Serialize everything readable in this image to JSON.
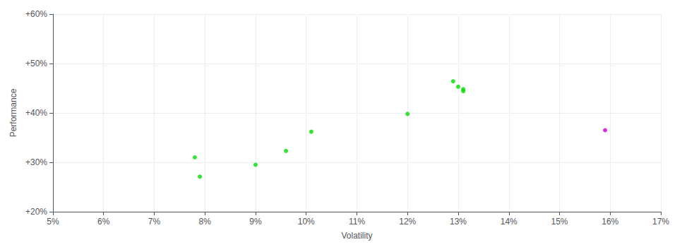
{
  "chart_data": {
    "type": "scatter",
    "xlabel": "Volatility",
    "ylabel": "Performance",
    "xlim": [
      0.05,
      0.17
    ],
    "ylim": [
      0.2,
      0.6
    ],
    "xticks": [
      {
        "value": 0.05,
        "label": "5%"
      },
      {
        "value": 0.06,
        "label": "6%"
      },
      {
        "value": 0.07,
        "label": "7%"
      },
      {
        "value": 0.08,
        "label": "8%"
      },
      {
        "value": 0.09,
        "label": "9%"
      },
      {
        "value": 0.1,
        "label": "10%"
      },
      {
        "value": 0.11,
        "label": "11%"
      },
      {
        "value": 0.12,
        "label": "12%"
      },
      {
        "value": 0.13,
        "label": "13%"
      },
      {
        "value": 0.14,
        "label": "14%"
      },
      {
        "value": 0.15,
        "label": "15%"
      },
      {
        "value": 0.16,
        "label": "16%"
      },
      {
        "value": 0.17,
        "label": "17%"
      }
    ],
    "yticks": [
      {
        "value": 0.2,
        "label": "+20%"
      },
      {
        "value": 0.3,
        "label": "+30%"
      },
      {
        "value": 0.4,
        "label": "+40%"
      },
      {
        "value": 0.5,
        "label": "+50%"
      },
      {
        "value": 0.6,
        "label": "+60%"
      }
    ],
    "grid": true,
    "series": [
      {
        "color": "#00dd00",
        "x": [
          0.079,
          0.078,
          0.09,
          0.096,
          0.101,
          0.12,
          0.129,
          0.13,
          0.131,
          0.131
        ],
        "values": [
          0.271,
          0.31,
          0.295,
          0.323,
          0.362,
          0.398,
          0.464,
          0.453,
          0.448,
          0.444
        ]
      },
      {
        "color": "#cc00cc",
        "x": [
          0.159
        ],
        "values": [
          0.365
        ]
      }
    ]
  }
}
